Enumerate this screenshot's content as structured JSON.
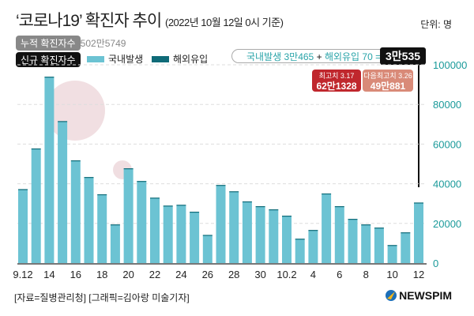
{
  "header": {
    "title": "‘코로나19’ 확진자 추이",
    "subtitle": "(2022년 10월 12일 0시 기준)",
    "unit": "단위: 명"
  },
  "cumulative": {
    "label": "누적 확진자수",
    "value": "2502만5749"
  },
  "new_cases": {
    "label": "신규 확진자수"
  },
  "callout": {
    "domestic": "국내발생 3만465",
    "plus": "+",
    "overseas": "해외유입 70 =",
    "total": "3만535"
  },
  "peaks": [
    {
      "label": "최고치 3.17",
      "value": "62만1328",
      "color": "#c0272d"
    },
    {
      "label": "다음최고치 3.26",
      "value": "49만881",
      "color": "#d98a78"
    }
  ],
  "footer": {
    "source": "[자료=질병관리청] [그래픽=김아랑 미술기자]",
    "logo": "NEWSPIM"
  },
  "chart_data": {
    "type": "bar",
    "stacked": true,
    "categories": [
      "9.12",
      "13",
      "14",
      "15",
      "16",
      "17",
      "18",
      "19",
      "20",
      "21",
      "22",
      "23",
      "24",
      "25",
      "26",
      "27",
      "28",
      "29",
      "30",
      "10.1",
      "10.2",
      "3",
      "4",
      "5",
      "6",
      "7",
      "8",
      "9",
      "10",
      "11",
      "12"
    ],
    "tick_labels": [
      "9.12",
      "14",
      "16",
      "18",
      "20",
      "22",
      "24",
      "26",
      "28",
      "30",
      "10.2",
      "4",
      "6",
      "8",
      "10",
      "12"
    ],
    "series": [
      {
        "name": "국내발생",
        "color": "#6cc3d3",
        "values": [
          37000,
          57500,
          93700,
          71300,
          51500,
          43200,
          34400,
          19200,
          47500,
          41100,
          32700,
          28700,
          29100,
          25600,
          14000,
          39100,
          35900,
          30800,
          28400,
          26800,
          23600,
          12100,
          16400,
          34800,
          28400,
          22000,
          19200,
          17600,
          8900,
          15300,
          30465
        ]
      },
      {
        "name": "해외유입",
        "color": "#0f6b78",
        "values": [
          300,
          300,
          300,
          300,
          300,
          200,
          300,
          300,
          300,
          300,
          300,
          300,
          300,
          300,
          200,
          300,
          300,
          300,
          300,
          300,
          300,
          200,
          300,
          300,
          300,
          300,
          300,
          300,
          200,
          200,
          70
        ]
      }
    ],
    "ylim": [
      0,
      100000
    ],
    "yticks": [
      0,
      20000,
      40000,
      60000,
      80000,
      100000
    ],
    "ytick_color": "#1a9a9a",
    "grid": true,
    "legend": "top-left"
  }
}
